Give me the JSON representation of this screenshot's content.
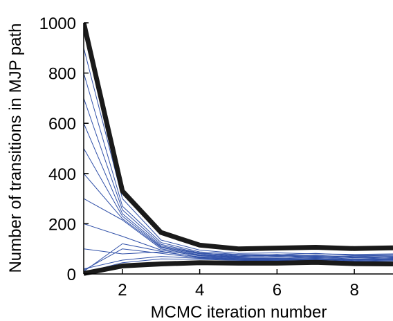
{
  "chart_data": {
    "type": "line",
    "xlabel": "MCMC iteration number",
    "ylabel": "Number of transitions in MJP path",
    "xlim": [
      1,
      9
    ],
    "ylim": [
      0,
      1000
    ],
    "xticks": [
      2,
      4,
      6,
      8
    ],
    "yticks": [
      0,
      200,
      400,
      600,
      800,
      1000
    ],
    "x": [
      1,
      2,
      3,
      4,
      5,
      6,
      7,
      8,
      9
    ],
    "grid": false,
    "legend": "none",
    "colors": {
      "thin": "#3050a8",
      "bold": "#1a1a1a",
      "axis": "#000000"
    },
    "series": [
      {
        "style": "bold",
        "values": [
          1000,
          330,
          165,
          115,
          100,
          103,
          106,
          101,
          104
        ]
      },
      {
        "style": "bold",
        "values": [
          2,
          32,
          40,
          45,
          43,
          43,
          46,
          41,
          40
        ]
      },
      {
        "style": "thin",
        "values": [
          900,
          300,
          135,
          95,
          82,
          84,
          80,
          78,
          80
        ]
      },
      {
        "style": "thin",
        "values": [
          800,
          270,
          125,
          88,
          78,
          76,
          82,
          74,
          76
        ]
      },
      {
        "style": "thin",
        "values": [
          700,
          255,
          118,
          84,
          72,
          78,
          70,
          72,
          74
        ]
      },
      {
        "style": "thin",
        "values": [
          600,
          240,
          112,
          82,
          76,
          72,
          74,
          68,
          70
        ]
      },
      {
        "style": "thin",
        "values": [
          500,
          230,
          108,
          80,
          70,
          74,
          68,
          72,
          66
        ]
      },
      {
        "style": "thin",
        "values": [
          400,
          220,
          105,
          76,
          68,
          66,
          72,
          64,
          68
        ]
      },
      {
        "style": "thin",
        "values": [
          300,
          215,
          100,
          74,
          66,
          70,
          64,
          66,
          62
        ]
      },
      {
        "style": "thin",
        "values": [
          200,
          150,
          95,
          72,
          64,
          62,
          66,
          60,
          64
        ]
      },
      {
        "style": "thin",
        "values": [
          100,
          80,
          88,
          68,
          62,
          60,
          62,
          58,
          60
        ]
      },
      {
        "style": "thin",
        "values": [
          10,
          120,
          90,
          66,
          60,
          58,
          60,
          56,
          58
        ]
      },
      {
        "style": "thin",
        "values": [
          20,
          55,
          70,
          62,
          56,
          54,
          58,
          52,
          55
        ]
      },
      {
        "style": "thin",
        "values": [
          5,
          45,
          60,
          58,
          54,
          52,
          55,
          50,
          52
        ]
      },
      {
        "style": "thin",
        "values": [
          15,
          100,
          82,
          64,
          58,
          56,
          57,
          55,
          57
        ]
      }
    ]
  }
}
